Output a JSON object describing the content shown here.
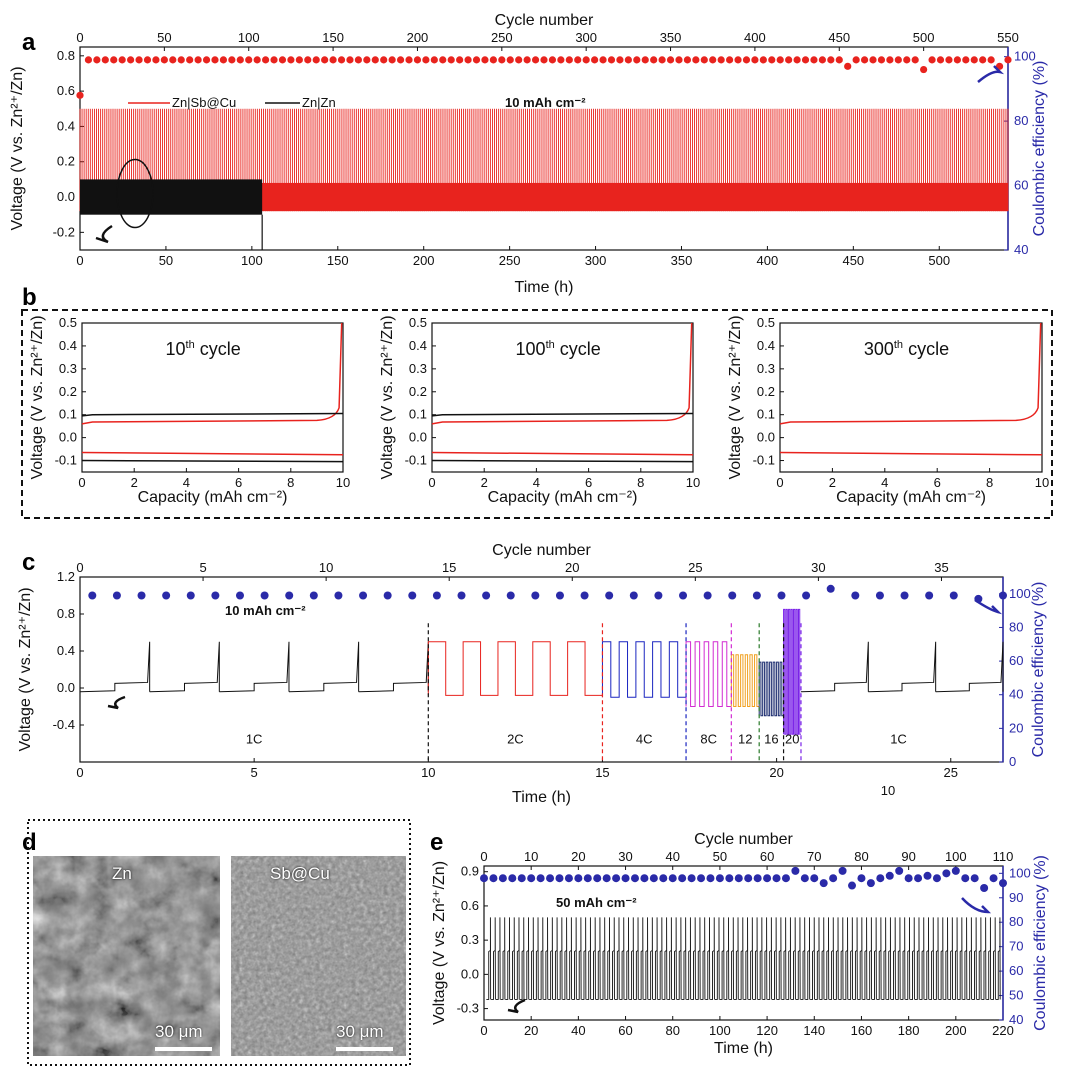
{
  "panels": {
    "a": {
      "letter": "a"
    },
    "b": {
      "letter": "b"
    },
    "c": {
      "letter": "c"
    },
    "d": {
      "letter": "d",
      "sem_labels": [
        "Zn",
        "Sb@Cu"
      ],
      "scale_label": "30 μm"
    },
    "e": {
      "letter": "e"
    }
  },
  "colors": {
    "red": "#e8231e",
    "black": "#111111",
    "blue": "#1a25c0",
    "magenta": "#d22ad2",
    "orange": "#f0a020",
    "navy": "#1a2a6e",
    "purple": "#7a22e8",
    "darkblue": "#2a2aa8"
  },
  "chart_data": [
    {
      "id": "a",
      "type": "line",
      "xlabel": "Time (h)",
      "ylabel": "Voltage (V vs. Zn²⁺/Zn)",
      "y2label": "Coulombic efficiency (%)",
      "x2label": "Cycle number",
      "xlim": [
        0,
        540
      ],
      "ylim": [
        -0.3,
        0.85
      ],
      "y2lim": [
        40,
        103
      ],
      "x2lim": [
        0,
        550
      ],
      "xticks": [
        "0",
        "50",
        "100",
        "150",
        "200",
        "250",
        "300",
        "350",
        "400",
        "450",
        "500"
      ],
      "yticks": [
        "-0.2",
        "0.0",
        "0.2",
        "0.4",
        "0.6",
        "0.8"
      ],
      "y2ticks": [
        "40",
        "60",
        "80",
        "100"
      ],
      "x2ticks": [
        "0",
        "50",
        "100",
        "150",
        "200",
        "250",
        "300",
        "350",
        "400",
        "450",
        "500",
        "550"
      ],
      "annotation": "10 mAh cm⁻²",
      "series": [
        {
          "name": "Zn|Sb@Cu",
          "color": "#e8231e",
          "x_range": [
            0,
            540
          ],
          "high": 0.5,
          "low": -0.08,
          "plateau_high": 0.08
        },
        {
          "name": "Zn|Zn",
          "color": "#111111",
          "x_range": [
            0,
            106
          ],
          "high": 0.1,
          "low": -0.1
        }
      ],
      "ce_points": {
        "x": [
          0,
          550
        ],
        "value": 99,
        "first": 88,
        "dips": [
          [
            455,
            97
          ],
          [
            498,
            96
          ],
          [
            505,
            99
          ],
          [
            545,
            97
          ]
        ]
      }
    },
    {
      "id": "b1",
      "type": "line",
      "annotation_base": "10",
      "annotation_sup": "th",
      "annotation_rest": " cycle",
      "xlabel": "Capacity (mAh cm⁻²)",
      "ylabel": "Voltage (V vs. Zn²⁺/Zn)",
      "xlim": [
        0,
        10
      ],
      "ylim": [
        -0.15,
        0.5
      ],
      "xticks": [
        "0",
        "2",
        "4",
        "6",
        "8",
        "10"
      ],
      "yticks": [
        "-0.1",
        "0.0",
        "0.1",
        "0.2",
        "0.3",
        "0.4",
        "0.5"
      ]
    },
    {
      "id": "b2",
      "type": "line",
      "annotation_base": "100",
      "annotation_sup": "th",
      "annotation_rest": " cycle",
      "xlabel": "Capacity (mAh cm⁻²)",
      "ylabel": "Voltage (V vs. Zn²⁺/Zn)",
      "xlim": [
        0,
        10
      ],
      "ylim": [
        -0.15,
        0.5
      ],
      "xticks": [
        "0",
        "2",
        "4",
        "6",
        "8",
        "10"
      ],
      "yticks": [
        "-0.1",
        "0.0",
        "0.1",
        "0.2",
        "0.3",
        "0.4",
        "0.5"
      ]
    },
    {
      "id": "b3",
      "type": "line",
      "annotation_base": "300",
      "annotation_sup": "th",
      "annotation_rest": " cycle",
      "xlabel": "Capacity (mAh cm⁻²)",
      "ylabel": "Voltage (V vs. Zn²⁺/Zn)",
      "xlim": [
        0,
        10
      ],
      "ylim": [
        -0.15,
        0.5
      ],
      "xticks": [
        "0",
        "2",
        "4",
        "6",
        "8",
        "10"
      ],
      "yticks": [
        "-0.1",
        "0.0",
        "0.1",
        "0.2",
        "0.3",
        "0.4",
        "0.5"
      ]
    },
    {
      "id": "c",
      "type": "line",
      "xlabel": "Time (h)",
      "ylabel": "Voltage (V vs. Zn²⁺/Zn)",
      "y2label": "Coulombic efficiency (%)",
      "x2label": "Cycle number",
      "xlim": [
        0,
        26.5
      ],
      "ylim": [
        -0.8,
        1.2
      ],
      "y2lim": [
        0,
        110
      ],
      "x2lim": [
        0,
        37.5
      ],
      "xticks": [
        "0",
        "5",
        "10",
        "15",
        "20",
        "25"
      ],
      "yticks": [
        "-0.4",
        "0.0",
        "0.4",
        "0.8",
        "1.2"
      ],
      "y2ticks": [
        "0",
        "20",
        "40",
        "60",
        "80",
        "100"
      ],
      "x2ticks": [
        "0",
        "5",
        "10",
        "15",
        "20",
        "25",
        "30",
        "35"
      ],
      "annotation": "10 mAh cm⁻²",
      "rate_labels": [
        "1C",
        "2C",
        "4C",
        "8C",
        "12",
        "16",
        "20",
        "1C"
      ],
      "stray_label": "10",
      "ce_value": 99
    },
    {
      "id": "e",
      "type": "line",
      "xlabel": "Time (h)",
      "ylabel": "Voltage (V vs. Zn²⁺/Zn)",
      "y2label": "Coulombic efficiency (%)",
      "x2label": "Cycle number",
      "xlim": [
        0,
        220
      ],
      "ylim": [
        -0.4,
        0.95
      ],
      "y2lim": [
        40,
        103
      ],
      "x2lim": [
        0,
        110
      ],
      "xticks": [
        "0",
        "20",
        "40",
        "60",
        "80",
        "100",
        "120",
        "140",
        "160",
        "180",
        "200",
        "220"
      ],
      "yticks": [
        "-0.3",
        "0.0",
        "0.3",
        "0.6",
        "0.9"
      ],
      "y2ticks": [
        "40",
        "50",
        "60",
        "70",
        "80",
        "90",
        "100"
      ],
      "x2ticks": [
        "0",
        "10",
        "20",
        "30",
        "40",
        "50",
        "60",
        "70",
        "80",
        "90",
        "100",
        "110"
      ],
      "annotation": "50 mAh cm⁻²",
      "ce_value": 98
    }
  ]
}
